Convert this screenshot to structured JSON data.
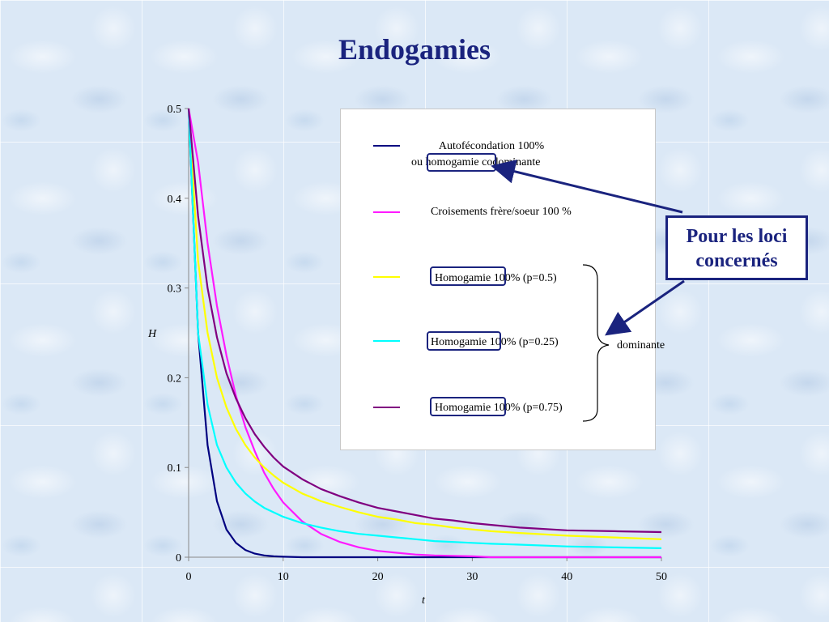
{
  "page": {
    "title": "Endogamies"
  },
  "callout": {
    "line1": "Pour les loci",
    "line2": "concernés"
  },
  "legend": {
    "items": [
      {
        "line1": "Autofécondation 100%",
        "line2_prefix": "ou ",
        "line2_boxed": "homogamie",
        "line2_suffix": " codominante",
        "color": "#000080"
      },
      {
        "line1": "Croisements frère/soeur 100 %",
        "color": "#ff1aff"
      },
      {
        "boxed": "Homogamie",
        "suffix": " 100% (p=0.5)",
        "color": "#ffff00"
      },
      {
        "boxed": "Homogamie",
        "suffix": " 100% (p=0.25)",
        "color": "#00ffff"
      },
      {
        "boxed": "Homogamie",
        "suffix": " 100% (p=0.75)",
        "color": "#800080"
      }
    ],
    "brace_label": "dominante"
  },
  "chart_data": {
    "type": "line",
    "title": "",
    "xlabel": "t",
    "ylabel": "H",
    "xlim": [
      0,
      50
    ],
    "ylim": [
      0,
      0.5
    ],
    "x_ticks": [
      0,
      10,
      20,
      30,
      40,
      50
    ],
    "y_ticks": [
      0,
      0.1,
      0.2,
      0.3,
      0.4,
      0.5
    ],
    "x": [
      0,
      1,
      2,
      3,
      4,
      5,
      6,
      7,
      8,
      9,
      10,
      12,
      14,
      16,
      18,
      20,
      22,
      24,
      26,
      28,
      30,
      32,
      35,
      40,
      45,
      50
    ],
    "series": [
      {
        "name": "Autofécondation 100% ou homogamie codominante",
        "color": "#000080",
        "values": [
          0.5,
          0.25,
          0.125,
          0.0625,
          0.031,
          0.016,
          0.008,
          0.004,
          0.002,
          0.001,
          0.0005,
          0,
          0,
          0,
          0,
          0,
          0,
          0,
          0,
          0,
          0,
          0,
          0,
          0,
          0,
          0
        ]
      },
      {
        "name": "Croisements frère/soeur 100 %",
        "color": "#ff1aff",
        "values": [
          0.5,
          0.44,
          0.35,
          0.28,
          0.225,
          0.18,
          0.145,
          0.118,
          0.094,
          0.076,
          0.061,
          0.04,
          0.026,
          0.017,
          0.011,
          0.007,
          0.005,
          0.003,
          0.002,
          0.0015,
          0.001,
          0,
          0,
          0,
          0,
          0
        ]
      },
      {
        "name": "Homogamie 100% (p=0.5)",
        "color": "#ffff00",
        "values": [
          0.5,
          0.33,
          0.25,
          0.2,
          0.167,
          0.143,
          0.125,
          0.111,
          0.1,
          0.091,
          0.083,
          0.071,
          0.0625,
          0.056,
          0.05,
          0.045,
          0.042,
          0.038,
          0.036,
          0.033,
          0.031,
          0.029,
          0.027,
          0.024,
          0.022,
          0.02
        ]
      },
      {
        "name": "Homogamie 100% (p=0.25)",
        "color": "#00ffff",
        "values": [
          0.5,
          0.25,
          0.17,
          0.125,
          0.1,
          0.083,
          0.071,
          0.062,
          0.055,
          0.05,
          0.045,
          0.038,
          0.033,
          0.029,
          0.026,
          0.024,
          0.022,
          0.02,
          0.018,
          0.017,
          0.016,
          0.015,
          0.014,
          0.012,
          0.011,
          0.01
        ]
      },
      {
        "name": "Homogamie 100% (p=0.75)",
        "color": "#800080",
        "values": [
          0.5,
          0.38,
          0.3,
          0.245,
          0.205,
          0.177,
          0.155,
          0.137,
          0.123,
          0.111,
          0.101,
          0.087,
          0.076,
          0.068,
          0.061,
          0.055,
          0.051,
          0.047,
          0.043,
          0.041,
          0.038,
          0.036,
          0.033,
          0.03,
          0.029,
          0.028
        ]
      }
    ]
  }
}
